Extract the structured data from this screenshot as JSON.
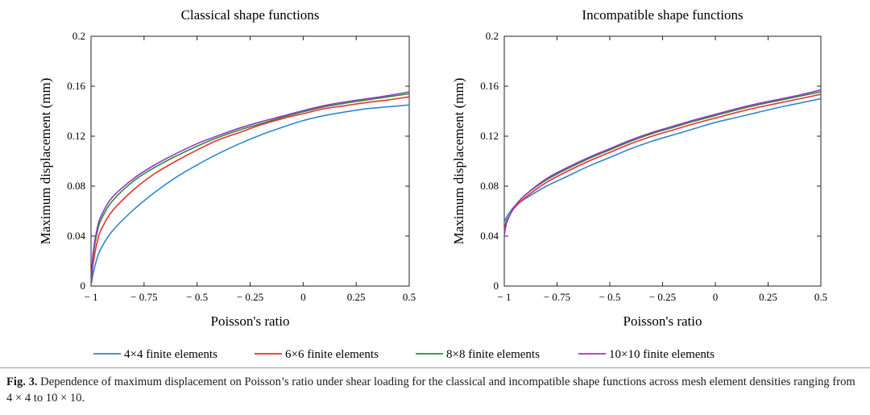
{
  "chart_data": [
    {
      "type": "line",
      "title": "Classical shape functions",
      "xlabel": "Poisson's ratio",
      "ylabel": "Maximum displacement (mm)",
      "xlim": [
        -1,
        0.5
      ],
      "ylim": [
        0,
        0.2
      ],
      "xticks": [
        -1,
        -0.75,
        -0.5,
        -0.25,
        0,
        0.25,
        0.5
      ],
      "xtick_labels": [
        "− 1",
        "− 0.75",
        "− 0.5",
        "− 0.25",
        "0",
        "0.25",
        "0.5"
      ],
      "yticks": [
        0,
        0.04,
        0.08,
        0.12,
        0.16,
        0.2
      ],
      "ytick_labels": [
        "0",
        "0.04",
        "0.08",
        "0.12",
        "0.16",
        "0.2"
      ],
      "grid": false,
      "x": [
        -0.998,
        -0.99,
        -0.97,
        -0.95,
        -0.9,
        -0.8,
        -0.7,
        -0.6,
        -0.5,
        -0.4,
        -0.3,
        -0.2,
        -0.1,
        0,
        0.1,
        0.2,
        0.3,
        0.4,
        0.5
      ],
      "series": [
        {
          "name": "4×4 finite elements",
          "color": "#2e86d0",
          "values": [
            0.002,
            0.01,
            0.023,
            0.031,
            0.044,
            0.061,
            0.075,
            0.087,
            0.097,
            0.106,
            0.114,
            0.121,
            0.127,
            0.1325,
            0.1365,
            0.1395,
            0.142,
            0.1435,
            0.145
          ]
        },
        {
          "name": "6×6 finite elements",
          "color": "#e8312e",
          "values": [
            0.003,
            0.018,
            0.036,
            0.046,
            0.06,
            0.077,
            0.09,
            0.1,
            0.109,
            0.117,
            0.123,
            0.129,
            0.134,
            0.138,
            0.142,
            0.1445,
            0.147,
            0.149,
            0.1515
          ]
        },
        {
          "name": "8×8 finite elements",
          "color": "#2f8a3a",
          "values": [
            0.004,
            0.024,
            0.044,
            0.054,
            0.068,
            0.084,
            0.095,
            0.104,
            0.112,
            0.119,
            0.125,
            0.13,
            0.135,
            0.1395,
            0.1435,
            0.1465,
            0.149,
            0.1515,
            0.154
          ]
        },
        {
          "name": "10×10 finite elements",
          "color": "#9437c8",
          "values": [
            0.005,
            0.027,
            0.047,
            0.057,
            0.071,
            0.086,
            0.097,
            0.106,
            0.114,
            0.1205,
            0.1265,
            0.1315,
            0.136,
            0.1405,
            0.1445,
            0.1475,
            0.15,
            0.1525,
            0.1555
          ]
        }
      ]
    },
    {
      "type": "line",
      "title": "Incompatible shape functions",
      "xlabel": "Poisson's ratio",
      "ylabel": "Maximum displacement (mm)",
      "xlim": [
        -1,
        0.5
      ],
      "ylim": [
        0,
        0.2
      ],
      "xticks": [
        -1,
        -0.75,
        -0.5,
        -0.25,
        0,
        0.25,
        0.5
      ],
      "xtick_labels": [
        "− 1",
        "− 0.75",
        "− 0.5",
        "− 0.25",
        "0",
        "0.25",
        "0.5"
      ],
      "yticks": [
        0,
        0.04,
        0.08,
        0.12,
        0.16,
        0.2
      ],
      "ytick_labels": [
        "0",
        "0.04",
        "0.08",
        "0.12",
        "0.16",
        "0.2"
      ],
      "grid": false,
      "x": [
        -1,
        -0.99,
        -0.97,
        -0.95,
        -0.9,
        -0.8,
        -0.7,
        -0.6,
        -0.5,
        -0.4,
        -0.3,
        -0.2,
        -0.1,
        0,
        0.1,
        0.2,
        0.3,
        0.4,
        0.5
      ],
      "series": [
        {
          "name": "4×4 finite elements",
          "color": "#2e86d0",
          "values": [
            0.051,
            0.055,
            0.06,
            0.064,
            0.07,
            0.08,
            0.088,
            0.096,
            0.103,
            0.11,
            0.116,
            0.121,
            0.126,
            0.131,
            0.135,
            0.139,
            0.143,
            0.1465,
            0.15
          ]
        },
        {
          "name": "6×6 finite elements",
          "color": "#e8312e",
          "values": [
            0.044,
            0.052,
            0.058,
            0.063,
            0.071,
            0.083,
            0.092,
            0.1,
            0.107,
            0.114,
            0.12,
            0.125,
            0.13,
            0.1345,
            0.139,
            0.143,
            0.1465,
            0.15,
            0.1535
          ]
        },
        {
          "name": "8×8 finite elements",
          "color": "#2f8a3a",
          "values": [
            0.042,
            0.051,
            0.058,
            0.064,
            0.073,
            0.085,
            0.094,
            0.102,
            0.109,
            0.116,
            0.122,
            0.127,
            0.132,
            0.1365,
            0.141,
            0.145,
            0.1485,
            0.152,
            0.1555
          ]
        },
        {
          "name": "10×10 finite elements",
          "color": "#9437c8",
          "values": [
            0.04,
            0.05,
            0.058,
            0.064,
            0.073,
            0.086,
            0.095,
            0.103,
            0.11,
            0.117,
            0.123,
            0.128,
            0.133,
            0.1375,
            0.142,
            0.146,
            0.1495,
            0.153,
            0.157
          ]
        }
      ]
    }
  ],
  "legend": {
    "position": "bottom",
    "items": [
      {
        "label": "4×4 finite elements",
        "color": "#2e86d0"
      },
      {
        "label": "6×6 finite elements",
        "color": "#e8312e"
      },
      {
        "label": "8×8 finite elements",
        "color": "#2f8a3a"
      },
      {
        "label": "10×10 finite elements",
        "color": "#9437c8"
      }
    ]
  },
  "caption": {
    "label": "Fig. 3.",
    "text": "Dependence of maximum displacement on Poisson’s ratio under shear loading for the classical and incompatible shape functions across mesh element densities ranging from 4 × 4 to 10 × 10."
  }
}
